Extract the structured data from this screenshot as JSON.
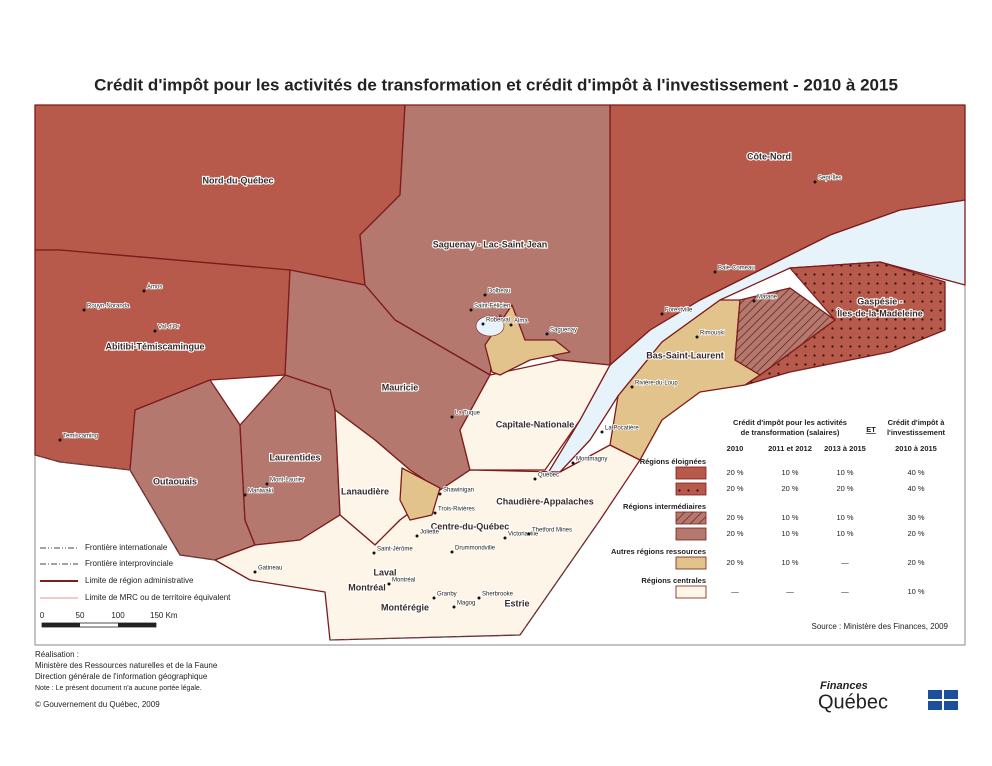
{
  "title": "Crédit d'impôt pour les activités de transformation et crédit d'impôt à l'investissement - 2010 à 2015",
  "map": {
    "regions": [
      "Nord-du-Québec",
      "Côte-Nord",
      "Saguenay - Lac-Saint-Jean",
      "Abitibi-Témiscamingue",
      "Mauricie",
      "Outaouais",
      "Laurentides",
      "Lanaudière",
      "Capitale-Nationale",
      "Chaudière-Appalaches",
      "Centre-du-Québec",
      "Bas-Saint-Laurent",
      [
        "Gaspésie -",
        "Îles-de-la-Madeleine"
      ],
      "Laval",
      "Montréal",
      "Montérégie",
      "Estrie"
    ],
    "cities": [
      "Sept-Îles",
      "Baie-Comeau",
      "Forestville",
      "Matane",
      "Rimouski",
      "Amos",
      "Rouyn-Noranda",
      "Val-d'Or",
      "Dolbeau",
      "Saint-Félicien",
      "Roberval",
      "Alma",
      "Saguenay",
      "La Tuque",
      "Temiscaming",
      "Mont-Laurier",
      "Maniwaki",
      "Shawinigan",
      "Trois-Rivières",
      "Joliette",
      "Saint-Jérôme",
      "Montréal",
      "Gatineau",
      "Drummondville",
      "Victoriaville",
      "Thetford Mines",
      "Granby",
      "Magog",
      "Sherbrooke",
      "Montmagny",
      "Québec",
      "Rivière-du-Loup",
      "La Pocatière"
    ]
  },
  "boundary_legend": [
    "Frontière internationale",
    "Frontière interprovinciale",
    "Limite de région administrative",
    "Limite de MRC ou de territoire équivalent"
  ],
  "scale_bar": [
    "0",
    "50",
    "100",
    "150 Km"
  ],
  "tax_table": {
    "header_transformation": [
      "Crédit d'impôt pour les activités",
      "de transformation (salaires)"
    ],
    "header_and": "ET",
    "header_investment": [
      "Crédit d'impôt à",
      "l'investissement"
    ],
    "columns": [
      "2010",
      "2011 et 2012",
      "2013 à 2015",
      "2010 à 2015"
    ],
    "groups": [
      {
        "label": "Régions éloignées",
        "rows": [
          [
            "20 %",
            "10 %",
            "10 %",
            "40 %"
          ],
          [
            "20 %",
            "20 %",
            "20 %",
            "40 %"
          ]
        ]
      },
      {
        "label": "Régions intermédiaires",
        "rows": [
          [
            "20 %",
            "10 %",
            "10 %",
            "30 %"
          ],
          [
            "20 %",
            "10 %",
            "10 %",
            "20 %"
          ]
        ]
      },
      {
        "label": "Autres régions ressources",
        "rows": [
          [
            "20 %",
            "10 %",
            "—",
            "20 %"
          ]
        ]
      },
      {
        "label": "Régions centrales",
        "rows": [
          [
            "—",
            "—",
            "—",
            "10 %"
          ]
        ]
      }
    ]
  },
  "source": "Source : Ministère des Finances, 2009",
  "credits": {
    "heading": "Réalisation :",
    "lines": [
      "Ministère des Ressources naturelles et de la Faune",
      "Direction générale de l'information géographique"
    ],
    "note": "Note : Le présent document n'a aucune portée légale.",
    "copyright": "© Gouvernement du Québec, 2009"
  },
  "logo": {
    "line1": "Finances",
    "line2": "Québec"
  }
}
